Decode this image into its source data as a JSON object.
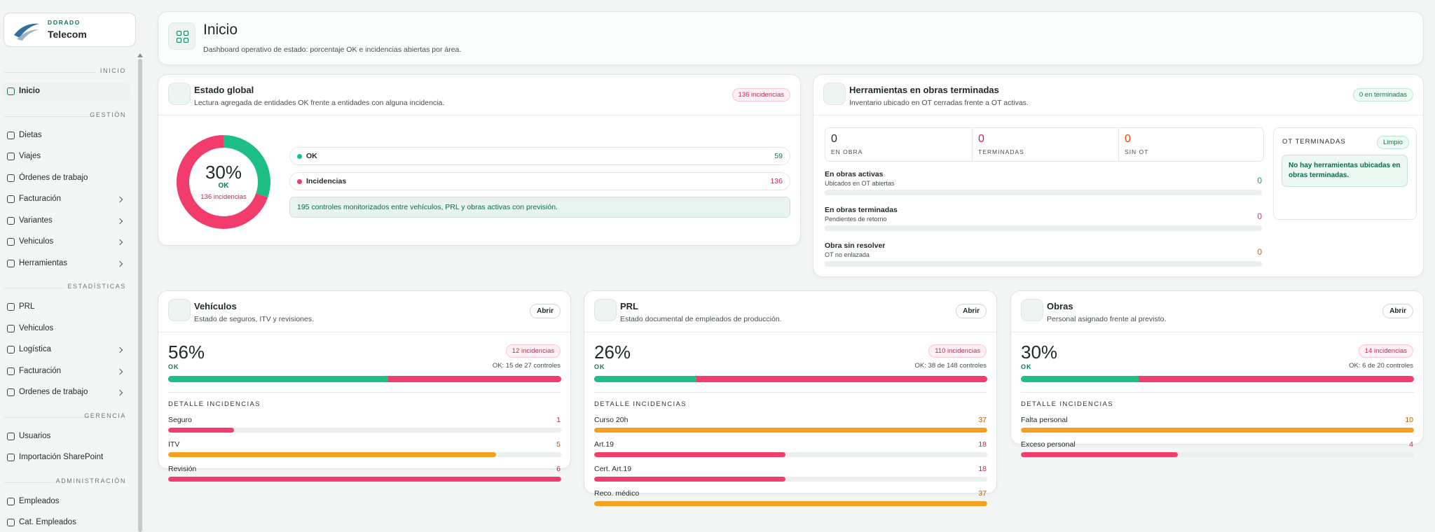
{
  "sidebar": {
    "brand": {
      "tag": "DORADO",
      "name": "Telecom"
    },
    "sections": [
      {
        "title": "INICIO",
        "items": [
          {
            "label": "Inicio",
            "active": true
          }
        ]
      },
      {
        "title": "GESTIÓN",
        "items": [
          {
            "label": "Dietas"
          },
          {
            "label": "Viajes"
          },
          {
            "label": "Órdenes de trabajo"
          },
          {
            "label": "Facturación",
            "expandable": true
          },
          {
            "label": "Variantes",
            "expandable": true
          },
          {
            "label": "Vehiculos",
            "expandable": true
          },
          {
            "label": "Herramientas",
            "expandable": true
          }
        ]
      },
      {
        "title": "ESTADÍSTICAS",
        "items": [
          {
            "label": "PRL"
          },
          {
            "label": "Vehiculos"
          },
          {
            "label": "Logística",
            "expandable": true
          },
          {
            "label": "Facturación",
            "expandable": true
          },
          {
            "label": "Ordenes de trabajo",
            "expandable": true
          }
        ]
      },
      {
        "title": "GERENCIA",
        "items": [
          {
            "label": "Usuarios"
          },
          {
            "label": "Importación SharePoint"
          }
        ]
      },
      {
        "title": "ADMINISTRACIÓN",
        "items": [
          {
            "label": "Empleados"
          },
          {
            "label": "Cat. Empleados"
          }
        ]
      }
    ]
  },
  "header": {
    "title": "Inicio",
    "subtitle": "Dashboard operativo de estado: porcentaje OK e incidencias abiertas por área."
  },
  "global": {
    "title": "Estado global",
    "subtitle": "Lectura agregada de entidades OK frente a entidades con alguna incidencia.",
    "badge": "136 incidencias",
    "donut": {
      "percent": {
        "value": 30,
        "label": "30%"
      },
      "status": "OK",
      "detail": "136 incidencias"
    },
    "rows": [
      {
        "label": "OK",
        "value": 59,
        "color": "#1dbf86"
      },
      {
        "label": "Incidencias",
        "value": 136,
        "color": "#f23c6c"
      }
    ],
    "note": "195 controles monitorizados entre vehículos, PRL y obras activas con previsión."
  },
  "tools": {
    "title": "Herramientas en obras terminadas",
    "subtitle": "Inventario ubicado en OT cerradas frente a OT activas.",
    "badge": "0 en terminadas",
    "stats": [
      {
        "value": 0,
        "label": "EN OBRA",
        "color": "#1f2a27"
      },
      {
        "value": 0,
        "label": "TERMINADAS",
        "color": "#c2255c"
      },
      {
        "value": 0,
        "label": "SIN OT",
        "color": "#d9480f"
      }
    ],
    "rows": [
      {
        "title": "En obras activas",
        "subtitle": "Ubicados en OT abiertas",
        "value": 0,
        "color": "#12a372"
      },
      {
        "title": "En obras terminadas",
        "subtitle": "Pendientes de retorno",
        "value": 0,
        "color": "#e03160"
      },
      {
        "title": "Obra sin resolver",
        "subtitle": "OT no enlazada",
        "value": 0,
        "color": "#e8590c"
      }
    ],
    "panel": {
      "title": "OT TERMINADAS",
      "badge": "Limpio",
      "message": "No hay herramientas ubicadas en obras terminadas."
    }
  },
  "areas": [
    {
      "title": "Vehículos",
      "subtitle": "Estado de seguros, ITV y revisiones.",
      "button": "Abrir",
      "percent": {
        "value": 56,
        "label": "56%"
      },
      "status": "OK",
      "badge": "12 incidencias",
      "summary": "OK: 15 de 27 controles",
      "detail_title": "DETALLE INCIDENCIAS",
      "items": [
        {
          "label": "Seguro",
          "value": 1,
          "color": "#f23c6c"
        },
        {
          "label": "ITV",
          "value": 5,
          "color": "#f5a020"
        },
        {
          "label": "Revisión",
          "value": 6,
          "color": "#f23c6c"
        }
      ]
    },
    {
      "title": "PRL",
      "subtitle": "Estado documental de empleados de producción.",
      "button": "Abrir",
      "percent": {
        "value": 26,
        "label": "26%"
      },
      "status": "OK",
      "badge": "110 incidencias",
      "summary": "OK: 38 de 148 controles",
      "detail_title": "DETALLE INCIDENCIAS",
      "items": [
        {
          "label": "Curso 20h",
          "value": 37,
          "color": "#f5a020"
        },
        {
          "label": "Art.19",
          "value": 18,
          "color": "#f23c6c"
        },
        {
          "label": "Cert. Art.19",
          "value": 18,
          "color": "#f23c6c"
        },
        {
          "label": "Reco. médico",
          "value": 37,
          "color": "#f5a020"
        }
      ]
    },
    {
      "title": "Obras",
      "subtitle": "Personal asignado frente al previsto.",
      "button": "Abrir",
      "percent": {
        "value": 30,
        "label": "30%"
      },
      "status": "OK",
      "badge": "14 incidencias",
      "summary": "OK: 6 de 20 controles",
      "detail_title": "DETALLE INCIDENCIAS",
      "items": [
        {
          "label": "Falta personal",
          "value": 10,
          "color": "#f5a020"
        },
        {
          "label": "Exceso personal",
          "value": 4,
          "color": "#f23c6c"
        }
      ]
    }
  ]
}
